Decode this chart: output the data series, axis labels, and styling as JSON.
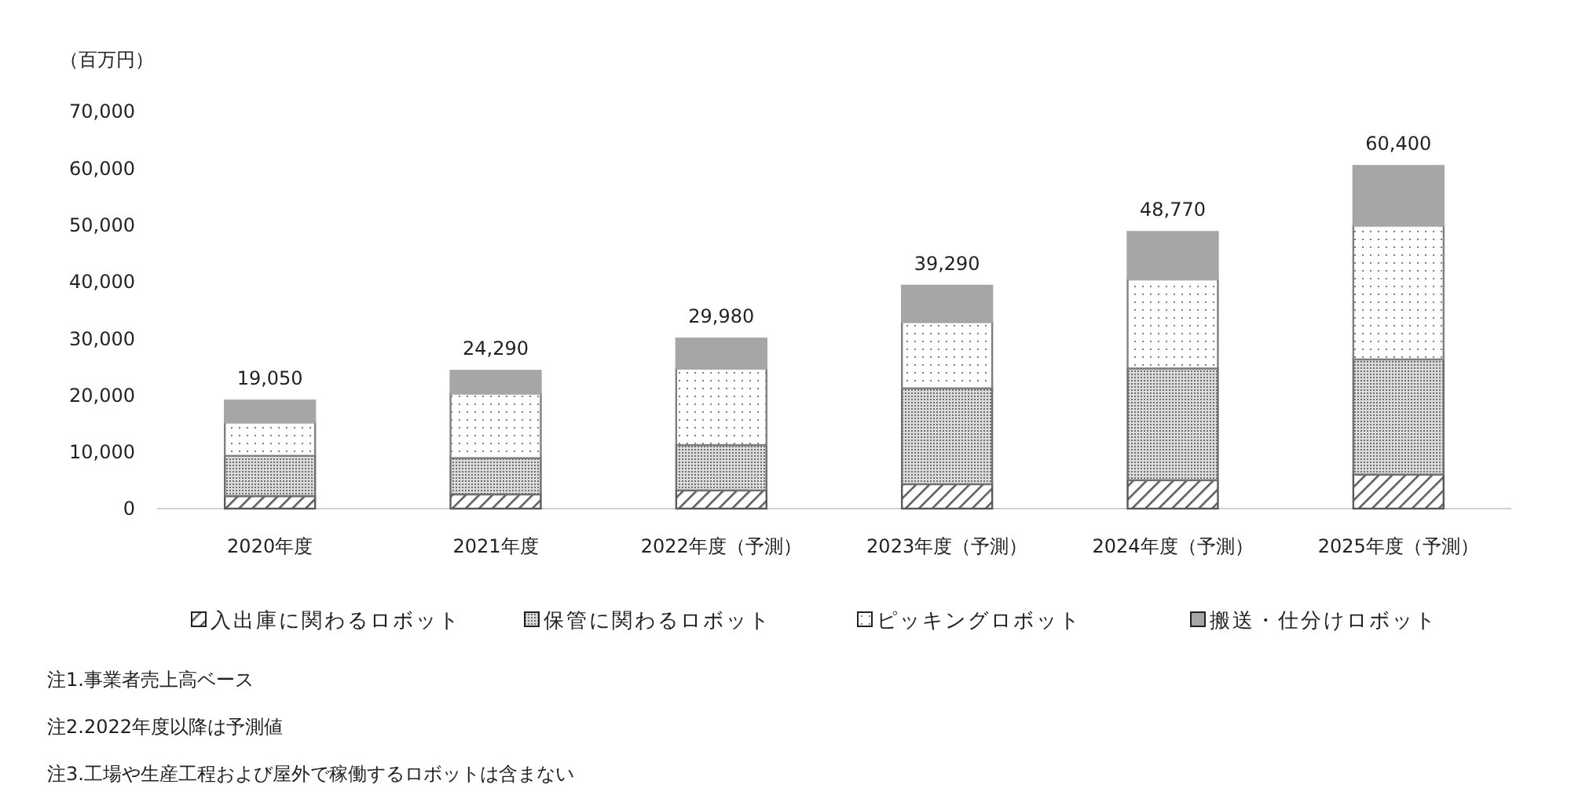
{
  "chart_data": {
    "type": "bar",
    "stacked": true,
    "ylabel": "（百万円）",
    "categories": [
      "2020年度",
      "2021年度",
      "2022年度（予測）",
      "2023年度（予測）",
      "2024年度（予測）",
      "2025年度（予測）"
    ],
    "series": [
      {
        "name": "入出庫に関わるロボット",
        "color": "#595959",
        "values": [
          2200,
          2500,
          3200,
          4300,
          5000,
          6000
        ]
      },
      {
        "name": "保管に関わるロボット",
        "color": "#6e6e6e",
        "values": [
          7100,
          6400,
          8000,
          16900,
          19700,
          20300
        ]
      },
      {
        "name": "ピッキングロボット",
        "color": "#7f7f7f",
        "values": [
          5900,
          11400,
          13500,
          11700,
          15700,
          23600
        ]
      },
      {
        "name": "搬送・仕分けロボット",
        "color": "#a6a6a6",
        "values": [
          3850,
          3990,
          5280,
          6390,
          8370,
          10500
        ]
      }
    ],
    "totals": [
      "19,050",
      "24,290",
      "29,980",
      "39,290",
      "48,770",
      "60,400"
    ],
    "ylim": [
      0,
      70000
    ],
    "yticks": [
      {
        "value": 0,
        "label": "0"
      },
      {
        "value": 10000,
        "label": "10,000"
      },
      {
        "value": 20000,
        "label": "20,000"
      },
      {
        "value": 30000,
        "label": "30,000"
      },
      {
        "value": 40000,
        "label": "40,000"
      },
      {
        "value": 50000,
        "label": "50,000"
      },
      {
        "value": 60000,
        "label": "60,000"
      },
      {
        "value": 70000,
        "label": "70,000"
      }
    ],
    "grid": false,
    "legend": "bottom",
    "annotations": [
      "注1.事業者売上高ベース",
      "注2.2022年度以降は予測値",
      "注3.工場や生産工程および屋外で稼働するロボットは含まない"
    ]
  }
}
